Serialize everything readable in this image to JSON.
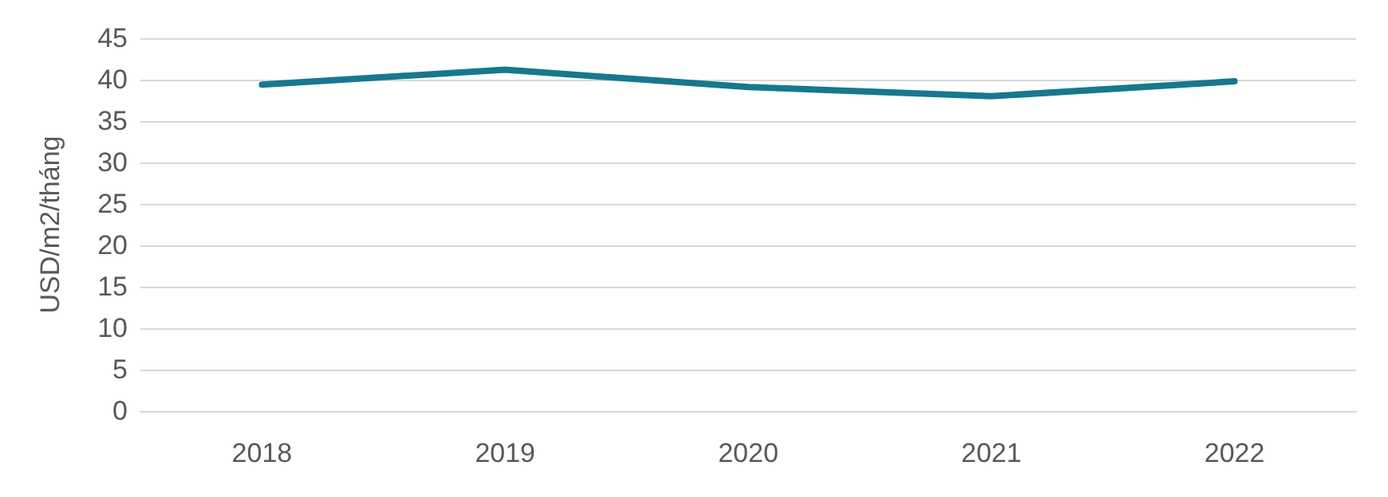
{
  "chart_data": {
    "type": "line",
    "ylabel": "USD/m2/tháng",
    "categories": [
      "2018",
      "2019",
      "2020",
      "2021",
      "2022"
    ],
    "series": [
      {
        "color": "#17788d",
        "values": [
          39.4,
          41.2,
          39.1,
          38.0,
          39.8
        ]
      }
    ],
    "ylim": [
      0,
      45
    ],
    "yticks": [
      0,
      5,
      10,
      15,
      20,
      25,
      30,
      35,
      40,
      45
    ],
    "grid": "y",
    "marker": "none",
    "line_style": "solid"
  }
}
